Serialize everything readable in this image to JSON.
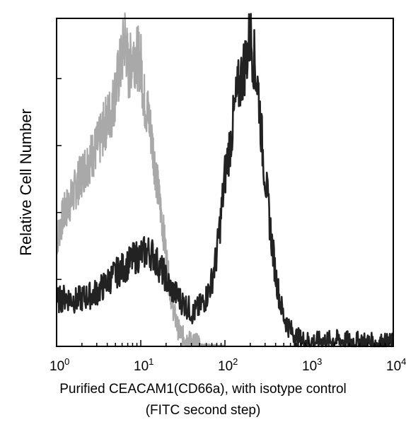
{
  "chart_data": {
    "type": "line",
    "xscale": "log",
    "xlim": [
      1,
      10000
    ],
    "ylim": [
      0,
      100
    ],
    "x_ticks": [
      {
        "base": "10",
        "exp": "0"
      },
      {
        "base": "10",
        "exp": "1"
      },
      {
        "base": "10",
        "exp": "2"
      },
      {
        "base": "10",
        "exp": "3"
      },
      {
        "base": "10",
        "exp": "4"
      }
    ],
    "ylabel": "Relative Cell Number",
    "xlabel_lines": [
      "Purified CEACAM1(CD66a), with isotype control",
      "(FITC second step)"
    ],
    "grid": false,
    "series": [
      {
        "color": "#9a9a9a",
        "x": [
          1,
          1.2,
          1.5,
          1.8,
          2.2,
          2.6,
          3.2,
          3.8,
          4.5,
          5.2,
          6,
          6.5,
          7.2,
          8,
          9,
          10,
          11,
          12.5,
          14,
          16,
          18,
          20,
          22,
          25,
          28,
          32,
          36,
          40,
          45,
          50,
          60,
          80,
          100
        ],
        "y": [
          32,
          40,
          45,
          50,
          55,
          58,
          62,
          68,
          72,
          80,
          88,
          95,
          83,
          90,
          88,
          87,
          75,
          70,
          60,
          48,
          38,
          28,
          18,
          10,
          5,
          3,
          2,
          1.5,
          1,
          0.5,
          0.3,
          0.1,
          0
        ]
      },
      {
        "color": "#222222",
        "x": [
          1,
          1.3,
          1.7,
          2.2,
          2.8,
          3.5,
          4.5,
          5.5,
          7,
          8.5,
          10,
          12,
          14,
          16,
          19,
          22,
          26,
          30,
          36,
          42,
          50,
          60,
          70,
          80,
          90,
          100,
          120,
          140,
          160,
          180,
          200,
          220,
          250,
          280,
          320,
          360,
          400,
          450,
          500,
          600,
          700,
          800,
          1000,
          1200,
          1500,
          2000,
          3000,
          4000,
          6000,
          10000
        ],
        "y": [
          14,
          15,
          14,
          15,
          16,
          18,
          21,
          23,
          25,
          27,
          28,
          29,
          28,
          25,
          22,
          18,
          16,
          14,
          12,
          10,
          12,
          15,
          20,
          28,
          40,
          52,
          65,
          77,
          83,
          88,
          95,
          88,
          78,
          60,
          45,
          32,
          22,
          14,
          9,
          5,
          3,
          2,
          1.5,
          1.5,
          1.5,
          2,
          1.5,
          1.5,
          1,
          1
        ]
      }
    ]
  }
}
